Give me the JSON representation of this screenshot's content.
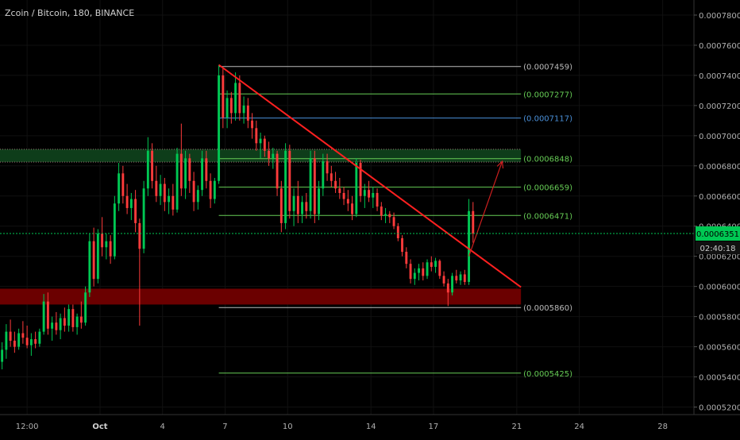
{
  "header": {
    "title": "Zcoin / Bitcoin, 180, BINANCE"
  },
  "price_axis": {
    "ticks": [
      "0.0007800",
      "0.0007600",
      "0.0007400",
      "0.0007200",
      "0.0007000",
      "0.0006800",
      "0.0006600",
      "0.0006400",
      "0.0006200",
      "0.0006000",
      "0.0005800",
      "0.0005600",
      "0.0005400",
      "0.0005200"
    ]
  },
  "time_axis": {
    "ticks": [
      {
        "label": "12:00",
        "t": -3.5
      },
      {
        "label": "Oct",
        "t": 0
      },
      {
        "label": "4",
        "t": 3
      },
      {
        "label": "7",
        "t": 6
      },
      {
        "label": "10",
        "t": 9
      },
      {
        "label": "14",
        "t": 13
      },
      {
        "label": "17",
        "t": 16
      },
      {
        "label": "21",
        "t": 20
      },
      {
        "label": "24",
        "t": 23
      },
      {
        "label": "28",
        "t": 27
      }
    ]
  },
  "current_price": {
    "label": "0.0006351",
    "value": 0.0006351,
    "color": "#00c853"
  },
  "countdown": {
    "label": "02:40:18"
  },
  "colors": {
    "background": "#000000",
    "bull": "#00c853",
    "bear": "#ff3b3b",
    "trendline": "#ff2020",
    "fib_green": "#66cc55",
    "fib_blue": "#4a90d9",
    "fib_white": "#bbbbbb",
    "resistance_zone": "#0e3d1a",
    "support_zone": "#6b0000"
  },
  "chart_data": {
    "type": "candlestick",
    "title": "Zcoin / Bitcoin, 180, BINANCE",
    "ylim": [
      0.000515,
      0.00079
    ],
    "xlim": [
      -4.8,
      28.5
    ],
    "fib_levels": [
      {
        "label": "(0.0007459)",
        "value": 0.0007459,
        "color": "#bbbbbb"
      },
      {
        "label": "(0.0007277)",
        "value": 0.0007277,
        "color": "#66cc55"
      },
      {
        "label": "(0.0007117)",
        "value": 0.0007117,
        "color": "#4a90d9"
      },
      {
        "label": "(0.0006848)",
        "value": 0.0006848,
        "color": "#66cc55"
      },
      {
        "label": "(0.0006659)",
        "value": 0.0006659,
        "color": "#66cc55"
      },
      {
        "label": "(0.0006471)",
        "value": 0.0006471,
        "color": "#66cc55"
      },
      {
        "label": "(0.0005860)",
        "value": 0.000586,
        "color": "#bbbbbb"
      },
      {
        "label": "(0.0005425)",
        "value": 0.0005425,
        "color": "#66cc55"
      }
    ],
    "fib_start_t": 5.7,
    "fib_end_t": 20.2,
    "zones": [
      {
        "name": "resistance",
        "low": 0.0006825,
        "high": 0.000691,
        "t_start": -4.8,
        "t_end": 20.2,
        "color": "#0e3d1a"
      },
      {
        "name": "support",
        "low": 0.000588,
        "high": 0.0005985,
        "t_start": -4.8,
        "t_end": 20.2,
        "color": "#6b0000"
      }
    ],
    "trendline": {
      "t1": 5.7,
      "p1": 0.000747,
      "t2": 20.2,
      "p2": 0.0005995
    },
    "arrow": {
      "t1": 17.7,
      "p1": 0.00062,
      "t2": 19.3,
      "p2": 0.000683
    },
    "current_price": 0.0006351,
    "candles": [
      {
        "t": -4.7,
        "o": 0.00055,
        "h": 0.000563,
        "l": 0.000545,
        "c": 0.000558
      },
      {
        "t": -4.5,
        "o": 0.000558,
        "h": 0.000575,
        "l": 0.000552,
        "c": 0.00057
      },
      {
        "t": -4.3,
        "o": 0.00057,
        "h": 0.000578,
        "l": 0.00056,
        "c": 0.000564
      },
      {
        "t": -4.1,
        "o": 0.000564,
        "h": 0.00057,
        "l": 0.000556,
        "c": 0.00056
      },
      {
        "t": -3.9,
        "o": 0.00056,
        "h": 0.000572,
        "l": 0.000558,
        "c": 0.000569
      },
      {
        "t": -3.7,
        "o": 0.000569,
        "h": 0.000577,
        "l": 0.000562,
        "c": 0.000566
      },
      {
        "t": -3.5,
        "o": 0.000566,
        "h": 0.000574,
        "l": 0.000559,
        "c": 0.000561
      },
      {
        "t": -3.3,
        "o": 0.000561,
        "h": 0.000569,
        "l": 0.000554,
        "c": 0.000565
      },
      {
        "t": -3.1,
        "o": 0.000565,
        "h": 0.00057,
        "l": 0.000559,
        "c": 0.000562
      },
      {
        "t": -2.9,
        "o": 0.000562,
        "h": 0.000572,
        "l": 0.00056,
        "c": 0.00057
      },
      {
        "t": -2.7,
        "o": 0.00057,
        "h": 0.000595,
        "l": 0.000568,
        "c": 0.00059
      },
      {
        "t": -2.5,
        "o": 0.00059,
        "h": 0.000596,
        "l": 0.000568,
        "c": 0.000572
      },
      {
        "t": -2.3,
        "o": 0.000572,
        "h": 0.00058,
        "l": 0.000564,
        "c": 0.000576
      },
      {
        "t": -2.1,
        "o": 0.000576,
        "h": 0.000583,
        "l": 0.000568,
        "c": 0.000571
      },
      {
        "t": -1.9,
        "o": 0.000571,
        "h": 0.000582,
        "l": 0.000565,
        "c": 0.000579
      },
      {
        "t": -1.7,
        "o": 0.000579,
        "h": 0.000586,
        "l": 0.00057,
        "c": 0.000574
      },
      {
        "t": -1.5,
        "o": 0.000574,
        "h": 0.000588,
        "l": 0.00057,
        "c": 0.000585
      },
      {
        "t": -1.3,
        "o": 0.000585,
        "h": 0.000588,
        "l": 0.00057,
        "c": 0.000573
      },
      {
        "t": -1.1,
        "o": 0.000573,
        "h": 0.000582,
        "l": 0.000568,
        "c": 0.00058
      },
      {
        "t": -0.9,
        "o": 0.00058,
        "h": 0.00059,
        "l": 0.000572,
        "c": 0.000576
      },
      {
        "t": -0.7,
        "o": 0.000576,
        "h": 0.0006,
        "l": 0.000574,
        "c": 0.000596
      },
      {
        "t": -0.5,
        "o": 0.000596,
        "h": 0.000635,
        "l": 0.000593,
        "c": 0.00063
      },
      {
        "t": -0.3,
        "o": 0.00063,
        "h": 0.000639,
        "l": 0.0006,
        "c": 0.000605
      },
      {
        "t": -0.1,
        "o": 0.000605,
        "h": 0.000638,
        "l": 0.000602,
        "c": 0.000635
      },
      {
        "t": 0.1,
        "o": 0.000635,
        "h": 0.000646,
        "l": 0.00062,
        "c": 0.000626
      },
      {
        "t": 0.3,
        "o": 0.000626,
        "h": 0.000635,
        "l": 0.000618,
        "c": 0.00063
      },
      {
        "t": 0.5,
        "o": 0.00063,
        "h": 0.000634,
        "l": 0.000615,
        "c": 0.00062
      },
      {
        "t": 0.7,
        "o": 0.00062,
        "h": 0.00066,
        "l": 0.000618,
        "c": 0.000655
      },
      {
        "t": 0.9,
        "o": 0.000655,
        "h": 0.000682,
        "l": 0.00065,
        "c": 0.000675
      },
      {
        "t": 1.1,
        "o": 0.000675,
        "h": 0.00068,
        "l": 0.000655,
        "c": 0.00066
      },
      {
        "t": 1.3,
        "o": 0.00066,
        "h": 0.000668,
        "l": 0.000648,
        "c": 0.000652
      },
      {
        "t": 1.5,
        "o": 0.000652,
        "h": 0.000662,
        "l": 0.000644,
        "c": 0.000658
      },
      {
        "t": 1.7,
        "o": 0.000658,
        "h": 0.000664,
        "l": 0.000636,
        "c": 0.000642
      },
      {
        "t": 1.9,
        "o": 0.000642,
        "h": 0.000645,
        "l": 0.000574,
        "c": 0.000625
      },
      {
        "t": 2.1,
        "o": 0.000625,
        "h": 0.00067,
        "l": 0.000622,
        "c": 0.000665
      },
      {
        "t": 2.3,
        "o": 0.000665,
        "h": 0.000699,
        "l": 0.00066,
        "c": 0.00069
      },
      {
        "t": 2.5,
        "o": 0.00069,
        "h": 0.000695,
        "l": 0.000665,
        "c": 0.00067
      },
      {
        "t": 2.7,
        "o": 0.00067,
        "h": 0.00068,
        "l": 0.000656,
        "c": 0.00066
      },
      {
        "t": 2.9,
        "o": 0.00066,
        "h": 0.000674,
        "l": 0.000654,
        "c": 0.000668
      },
      {
        "t": 3.1,
        "o": 0.000668,
        "h": 0.000672,
        "l": 0.00065,
        "c": 0.000656
      },
      {
        "t": 3.3,
        "o": 0.000656,
        "h": 0.000665,
        "l": 0.000648,
        "c": 0.00066
      },
      {
        "t": 3.5,
        "o": 0.00066,
        "h": 0.000668,
        "l": 0.000647,
        "c": 0.000651
      },
      {
        "t": 3.7,
        "o": 0.000651,
        "h": 0.000692,
        "l": 0.000649,
        "c": 0.000688
      },
      {
        "t": 3.9,
        "o": 0.000688,
        "h": 0.000708,
        "l": 0.00066,
        "c": 0.000665
      },
      {
        "t": 4.1,
        "o": 0.000665,
        "h": 0.00069,
        "l": 0.000658,
        "c": 0.000685
      },
      {
        "t": 4.3,
        "o": 0.000685,
        "h": 0.000688,
        "l": 0.000662,
        "c": 0.00067
      },
      {
        "t": 4.5,
        "o": 0.00067,
        "h": 0.000676,
        "l": 0.00065,
        "c": 0.000656
      },
      {
        "t": 4.7,
        "o": 0.000656,
        "h": 0.000667,
        "l": 0.000651,
        "c": 0.000664
      },
      {
        "t": 4.9,
        "o": 0.000664,
        "h": 0.00069,
        "l": 0.00066,
        "c": 0.000685
      },
      {
        "t": 5.1,
        "o": 0.000685,
        "h": 0.00069,
        "l": 0.000665,
        "c": 0.00067
      },
      {
        "t": 5.3,
        "o": 0.00067,
        "h": 0.000675,
        "l": 0.000652,
        "c": 0.000658
      },
      {
        "t": 5.5,
        "o": 0.000658,
        "h": 0.000672,
        "l": 0.000655,
        "c": 0.00067
      },
      {
        "t": 5.7,
        "o": 0.00067,
        "h": 0.000747,
        "l": 0.000668,
        "c": 0.00074
      },
      {
        "t": 5.9,
        "o": 0.00074,
        "h": 0.000745,
        "l": 0.000705,
        "c": 0.000712
      },
      {
        "t": 6.1,
        "o": 0.000712,
        "h": 0.00073,
        "l": 0.000705,
        "c": 0.000725
      },
      {
        "t": 6.3,
        "o": 0.000725,
        "h": 0.000729,
        "l": 0.000708,
        "c": 0.000715
      },
      {
        "t": 6.5,
        "o": 0.000715,
        "h": 0.000742,
        "l": 0.00071,
        "c": 0.000735
      },
      {
        "t": 6.7,
        "o": 0.000735,
        "h": 0.00074,
        "l": 0.00071,
        "c": 0.000715
      },
      {
        "t": 6.9,
        "o": 0.000715,
        "h": 0.000726,
        "l": 0.000708,
        "c": 0.00072
      },
      {
        "t": 7.1,
        "o": 0.00072,
        "h": 0.000725,
        "l": 0.000705,
        "c": 0.00071
      },
      {
        "t": 7.3,
        "o": 0.00071,
        "h": 0.000715,
        "l": 0.000698,
        "c": 0.000705
      },
      {
        "t": 7.5,
        "o": 0.000705,
        "h": 0.00071,
        "l": 0.00069,
        "c": 0.000695
      },
      {
        "t": 7.7,
        "o": 0.000695,
        "h": 0.000702,
        "l": 0.000685,
        "c": 0.000698
      },
      {
        "t": 7.9,
        "o": 0.000698,
        "h": 0.0007,
        "l": 0.000686,
        "c": 0.00069
      },
      {
        "t": 8.1,
        "o": 0.00069,
        "h": 0.000696,
        "l": 0.00068,
        "c": 0.000685
      },
      {
        "t": 8.3,
        "o": 0.000685,
        "h": 0.000692,
        "l": 0.000678,
        "c": 0.000688
      },
      {
        "t": 8.5,
        "o": 0.000688,
        "h": 0.00069,
        "l": 0.00066,
        "c": 0.000665
      },
      {
        "t": 8.7,
        "o": 0.000665,
        "h": 0.00067,
        "l": 0.000636,
        "c": 0.000642
      },
      {
        "t": 8.9,
        "o": 0.000642,
        "h": 0.000695,
        "l": 0.000638,
        "c": 0.00069
      },
      {
        "t": 9.1,
        "o": 0.00069,
        "h": 0.000694,
        "l": 0.000645,
        "c": 0.00065
      },
      {
        "t": 9.3,
        "o": 0.00065,
        "h": 0.000665,
        "l": 0.00064,
        "c": 0.00066
      },
      {
        "t": 9.5,
        "o": 0.00066,
        "h": 0.00067,
        "l": 0.000642,
        "c": 0.000648
      },
      {
        "t": 9.7,
        "o": 0.000648,
        "h": 0.00066,
        "l": 0.000642,
        "c": 0.000656
      },
      {
        "t": 9.9,
        "o": 0.000656,
        "h": 0.000662,
        "l": 0.000645,
        "c": 0.00065
      },
      {
        "t": 10.1,
        "o": 0.00065,
        "h": 0.00069,
        "l": 0.000645,
        "c": 0.000685
      },
      {
        "t": 10.3,
        "o": 0.000685,
        "h": 0.00069,
        "l": 0.000642,
        "c": 0.000648
      },
      {
        "t": 10.5,
        "o": 0.000648,
        "h": 0.00067,
        "l": 0.000644,
        "c": 0.000665
      },
      {
        "t": 10.7,
        "o": 0.000665,
        "h": 0.000688,
        "l": 0.00066,
        "c": 0.000683
      },
      {
        "t": 10.9,
        "o": 0.000683,
        "h": 0.000688,
        "l": 0.00067,
        "c": 0.000675
      },
      {
        "t": 11.1,
        "o": 0.000675,
        "h": 0.00068,
        "l": 0.000666,
        "c": 0.00067
      },
      {
        "t": 11.3,
        "o": 0.00067,
        "h": 0.000676,
        "l": 0.000662,
        "c": 0.000665
      },
      {
        "t": 11.5,
        "o": 0.000665,
        "h": 0.000672,
        "l": 0.000658,
        "c": 0.000662
      },
      {
        "t": 11.7,
        "o": 0.000662,
        "h": 0.000666,
        "l": 0.000654,
        "c": 0.000658
      },
      {
        "t": 11.9,
        "o": 0.000658,
        "h": 0.000664,
        "l": 0.00065,
        "c": 0.000655
      },
      {
        "t": 12.1,
        "o": 0.000655,
        "h": 0.00066,
        "l": 0.000644,
        "c": 0.000648
      },
      {
        "t": 12.3,
        "o": 0.000648,
        "h": 0.000685,
        "l": 0.000646,
        "c": 0.000682
      },
      {
        "t": 12.5,
        "o": 0.000682,
        "h": 0.000684,
        "l": 0.000656,
        "c": 0.00066
      },
      {
        "t": 12.7,
        "o": 0.00066,
        "h": 0.000668,
        "l": 0.000652,
        "c": 0.000664
      },
      {
        "t": 12.9,
        "o": 0.000664,
        "h": 0.00067,
        "l": 0.000656,
        "c": 0.000659
      },
      {
        "t": 13.1,
        "o": 0.000659,
        "h": 0.000666,
        "l": 0.000652,
        "c": 0.000662
      },
      {
        "t": 13.3,
        "o": 0.000662,
        "h": 0.000665,
        "l": 0.00065,
        "c": 0.000653
      },
      {
        "t": 13.5,
        "o": 0.000653,
        "h": 0.000656,
        "l": 0.000644,
        "c": 0.000647
      },
      {
        "t": 13.7,
        "o": 0.000647,
        "h": 0.000652,
        "l": 0.000642,
        "c": 0.000648
      },
      {
        "t": 13.9,
        "o": 0.000648,
        "h": 0.00065,
        "l": 0.000642,
        "c": 0.000646
      },
      {
        "t": 14.1,
        "o": 0.000646,
        "h": 0.000649,
        "l": 0.000638,
        "c": 0.00064
      },
      {
        "t": 14.3,
        "o": 0.00064,
        "h": 0.000642,
        "l": 0.00063,
        "c": 0.000632
      },
      {
        "t": 14.5,
        "o": 0.000632,
        "h": 0.000634,
        "l": 0.00062,
        "c": 0.000623
      },
      {
        "t": 14.7,
        "o": 0.000623,
        "h": 0.000626,
        "l": 0.000612,
        "c": 0.000615
      },
      {
        "t": 14.9,
        "o": 0.000615,
        "h": 0.000618,
        "l": 0.000602,
        "c": 0.000605
      },
      {
        "t": 15.1,
        "o": 0.000605,
        "h": 0.000612,
        "l": 0.000601,
        "c": 0.000609
      },
      {
        "t": 15.3,
        "o": 0.000609,
        "h": 0.000615,
        "l": 0.000604,
        "c": 0.000612
      },
      {
        "t": 15.5,
        "o": 0.000612,
        "h": 0.000616,
        "l": 0.000604,
        "c": 0.000607
      },
      {
        "t": 15.7,
        "o": 0.000607,
        "h": 0.000618,
        "l": 0.000605,
        "c": 0.000616
      },
      {
        "t": 15.9,
        "o": 0.000616,
        "h": 0.00062,
        "l": 0.00061,
        "c": 0.000613
      },
      {
        "t": 16.1,
        "o": 0.000613,
        "h": 0.000619,
        "l": 0.000609,
        "c": 0.000617
      },
      {
        "t": 16.3,
        "o": 0.000617,
        "h": 0.000618,
        "l": 0.000605,
        "c": 0.000607
      },
      {
        "t": 16.5,
        "o": 0.000607,
        "h": 0.00061,
        "l": 0.0006,
        "c": 0.000602
      },
      {
        "t": 16.7,
        "o": 0.000602,
        "h": 0.000605,
        "l": 0.000587,
        "c": 0.000596
      },
      {
        "t": 16.9,
        "o": 0.000596,
        "h": 0.000609,
        "l": 0.000594,
        "c": 0.000607
      },
      {
        "t": 17.1,
        "o": 0.000607,
        "h": 0.000611,
        "l": 0.000602,
        "c": 0.000604
      },
      {
        "t": 17.3,
        "o": 0.000604,
        "h": 0.00061,
        "l": 0.000601,
        "c": 0.000608
      },
      {
        "t": 17.5,
        "o": 0.000608,
        "h": 0.000611,
        "l": 0.000601,
        "c": 0.000603
      },
      {
        "t": 17.7,
        "o": 0.000603,
        "h": 0.000658,
        "l": 0.000601,
        "c": 0.00065
      },
      {
        "t": 17.9,
        "o": 0.00065,
        "h": 0.000656,
        "l": 0.000629,
        "c": 0.0006351
      }
    ]
  }
}
